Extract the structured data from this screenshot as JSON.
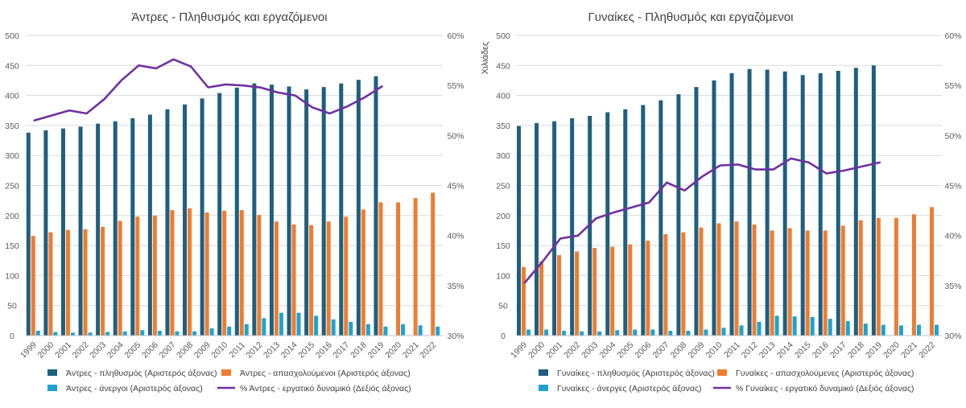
{
  "chart_data": [
    {
      "type": "bar",
      "title": "Άντρες - Πληθυσμός και εργαζόμενοι",
      "categories": [
        "1999",
        "2000",
        "2001",
        "2002",
        "2003",
        "2004",
        "2005",
        "2006",
        "2007",
        "2008",
        "2009",
        "2010",
        "2011",
        "2012",
        "2013",
        "2014",
        "2015",
        "2016",
        "2017",
        "2018",
        "2019",
        "2020",
        "2021",
        "2022"
      ],
      "y_left": {
        "min": 0,
        "max": 500,
        "ticks": [
          "0",
          "50",
          "100",
          "150",
          "200",
          "250",
          "300",
          "350",
          "400",
          "450",
          "500"
        ]
      },
      "y_right": {
        "min": 30,
        "max": 60,
        "ticks": [
          "30%",
          "35%",
          "40%",
          "45%",
          "50%",
          "55%",
          "60%"
        ]
      },
      "series": [
        {
          "name": "Άντρες - πληθυσμός (Αριστερός άξονας)",
          "kind": "bar",
          "axis": "left",
          "color": "#1f5f7f",
          "values": [
            338,
            342,
            345,
            348,
            353,
            357,
            362,
            368,
            377,
            385,
            395,
            404,
            413,
            420,
            418,
            415,
            410,
            414,
            420,
            426,
            432,
            null,
            null,
            null
          ]
        },
        {
          "name": "Άντρες - απασχολούμενοι (Αριστερός άξονας)",
          "kind": "bar",
          "axis": "left",
          "color": "#ed7d31",
          "values": [
            166,
            172,
            176,
            177,
            181,
            191,
            198,
            200,
            209,
            212,
            205,
            208,
            209,
            201,
            190,
            185,
            184,
            190,
            198,
            210,
            222,
            222,
            229,
            238
          ]
        },
        {
          "name": "Άντρες - άνεργοι (Αριστερός άξονας)",
          "kind": "bar",
          "axis": "left",
          "color": "#1ea3d0",
          "values": [
            8,
            6,
            5,
            5,
            6,
            7,
            9,
            8,
            7,
            7,
            12,
            15,
            19,
            29,
            38,
            38,
            33,
            27,
            23,
            19,
            15,
            19,
            17,
            15
          ]
        },
        {
          "name": "% Άντρες - εργατικό δυναμικό (Δεξιός άξονας)",
          "kind": "line",
          "axis": "right",
          "color": "#7030a0",
          "values": [
            51.5,
            52.0,
            52.5,
            52.2,
            53.6,
            55.5,
            57.0,
            56.7,
            57.6,
            56.9,
            54.8,
            55.1,
            55.0,
            54.8,
            54.3,
            54.0,
            52.8,
            52.2,
            52.9,
            53.8,
            54.9,
            null,
            null,
            null
          ]
        }
      ]
    },
    {
      "type": "bar",
      "title": "Γυναίκες - Πληθυσμός και εργαζόμενοι",
      "ylabel": "Χιλιάδες",
      "categories": [
        "1999",
        "2000",
        "2001",
        "2002",
        "2003",
        "2004",
        "2005",
        "2006",
        "2007",
        "2008",
        "2009",
        "2010",
        "2011",
        "2012",
        "2013",
        "2014",
        "2015",
        "2016",
        "2017",
        "2018",
        "2019",
        "2020",
        "2021",
        "2022"
      ],
      "y_left": {
        "min": 0,
        "max": 500,
        "ticks": [
          "0",
          "50",
          "100",
          "150",
          "200",
          "250",
          "300",
          "350",
          "400",
          "450",
          "500"
        ]
      },
      "y_right": {
        "min": 30,
        "max": 60,
        "ticks": [
          "30%",
          "35%",
          "40%",
          "45%",
          "50%",
          "55%",
          "60%"
        ]
      },
      "series": [
        {
          "name": "Γυναίκες - πληθυσμός (Αριστερός άξονας)",
          "kind": "bar",
          "axis": "left",
          "color": "#1f5f7f",
          "values": [
            349,
            354,
            357,
            362,
            366,
            372,
            377,
            384,
            392,
            402,
            414,
            425,
            437,
            444,
            443,
            440,
            434,
            437,
            441,
            446,
            450,
            null,
            null,
            null
          ]
        },
        {
          "name": "Γυναίκες - απασχολούμενες (Αριστερός άξονας)",
          "kind": "bar",
          "axis": "left",
          "color": "#ed7d31",
          "values": [
            114,
            124,
            134,
            140,
            146,
            148,
            152,
            158,
            169,
            172,
            180,
            187,
            190,
            185,
            175,
            179,
            175,
            175,
            183,
            192,
            196,
            196,
            202,
            214
          ]
        },
        {
          "name": "Γυναίκες - άνεργες (Αριστερός άξονας)",
          "kind": "bar",
          "axis": "left",
          "color": "#1ea3d0",
          "values": [
            10,
            10,
            8,
            7,
            7,
            9,
            10,
            10,
            8,
            8,
            10,
            13,
            17,
            23,
            33,
            32,
            31,
            28,
            24,
            20,
            18,
            17,
            18,
            18
          ]
        },
        {
          "name": "% Γυναίκες - εργατικό δυναμικό (Δεξιός άξονας)",
          "kind": "line",
          "axis": "right",
          "color": "#7030a0",
          "values": [
            35.3,
            37.4,
            39.7,
            40.0,
            41.7,
            42.3,
            42.8,
            43.3,
            45.3,
            44.5,
            45.9,
            47.0,
            47.1,
            46.6,
            46.6,
            47.7,
            47.3,
            46.2,
            46.5,
            46.9,
            47.3,
            null,
            null,
            null
          ]
        }
      ]
    }
  ]
}
